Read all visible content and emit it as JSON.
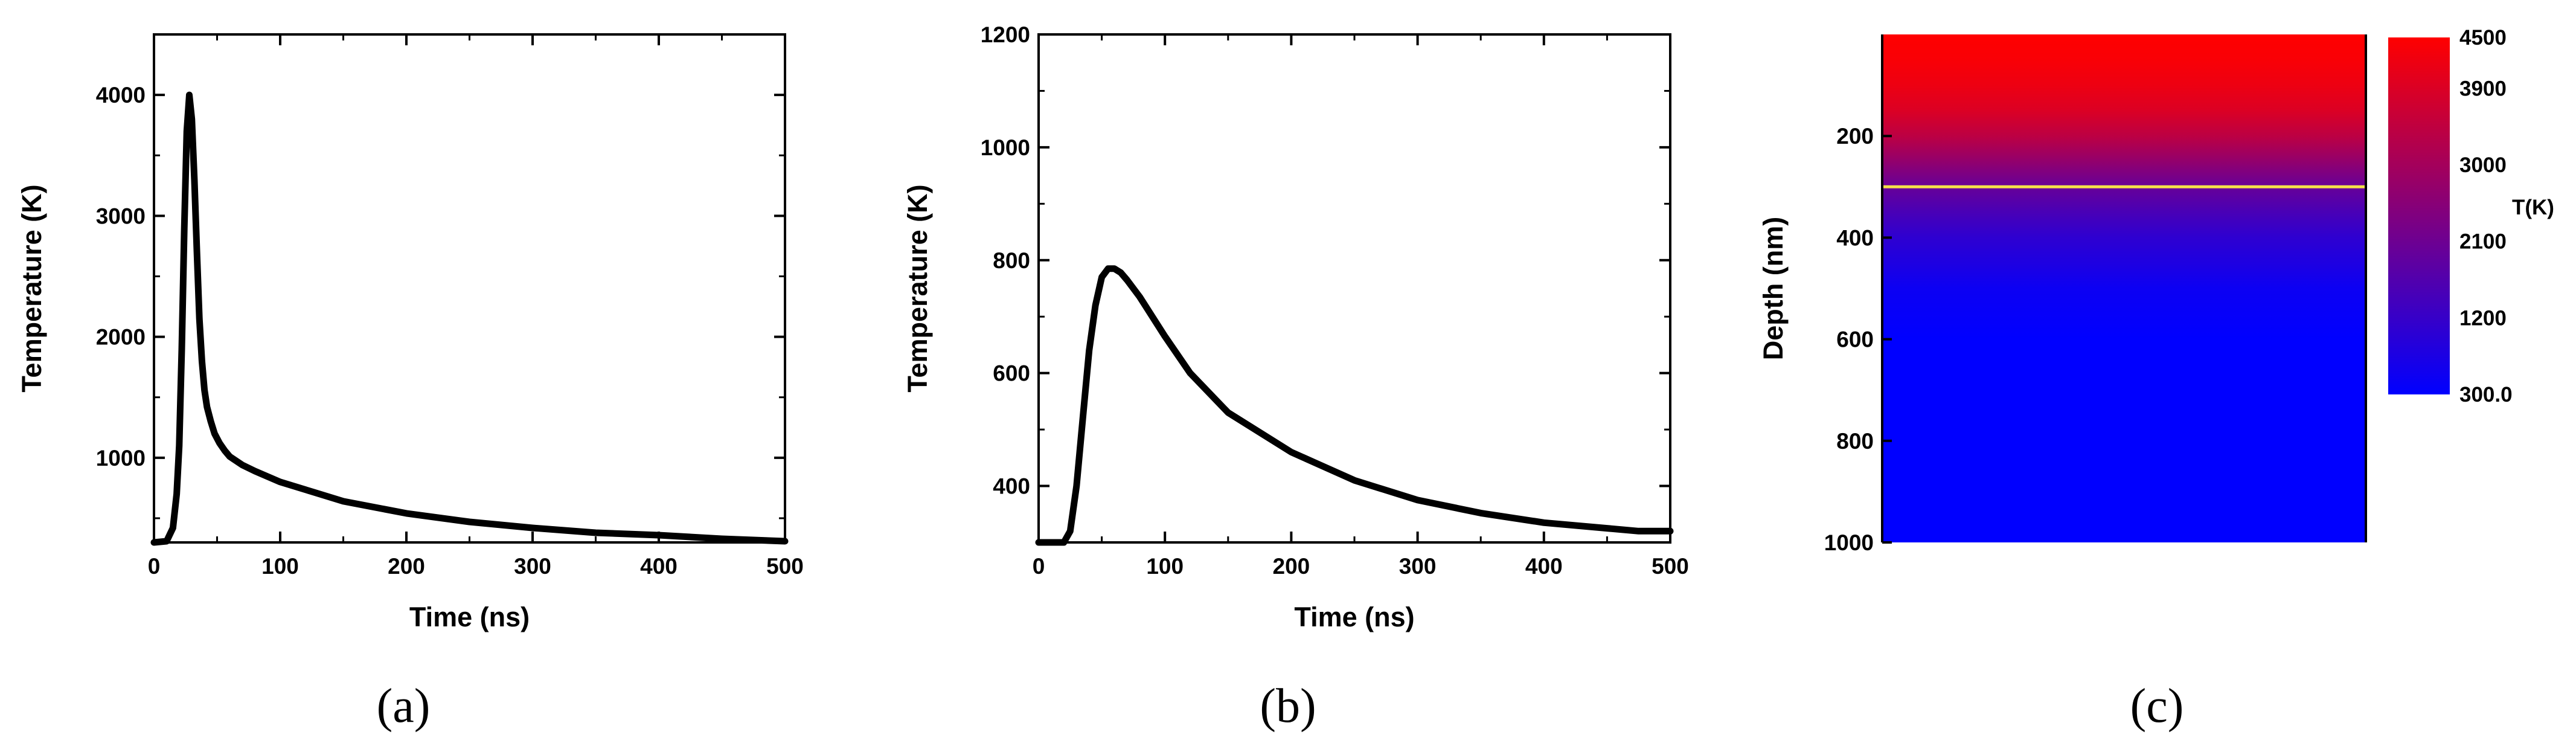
{
  "chart_data": [
    {
      "id": "a",
      "type": "line",
      "panel_label": "(a)",
      "xlabel": "Time (ns)",
      "ylabel": "Temperature (K)",
      "xlim": [
        0,
        500
      ],
      "ylim": [
        300,
        4500
      ],
      "xticks": [
        0,
        100,
        200,
        300,
        400,
        500
      ],
      "yticks": [
        1000,
        2000,
        3000,
        4000
      ],
      "line_color": "#000000",
      "series": [
        {
          "name": "Temperature",
          "x": [
            0,
            10,
            15,
            18,
            20,
            22,
            24,
            26,
            28,
            30,
            32,
            34,
            36,
            38,
            40,
            42,
            45,
            48,
            52,
            56,
            60,
            70,
            80,
            100,
            125,
            150,
            200,
            250,
            300,
            350,
            400,
            450,
            500
          ],
          "y": [
            300,
            310,
            420,
            700,
            1100,
            1900,
            2900,
            3700,
            4000,
            3800,
            3300,
            2700,
            2150,
            1800,
            1560,
            1420,
            1300,
            1200,
            1120,
            1060,
            1010,
            940,
            890,
            800,
            720,
            640,
            540,
            470,
            420,
            380,
            360,
            330,
            310
          ]
        }
      ]
    },
    {
      "id": "b",
      "type": "line",
      "panel_label": "(b)",
      "xlabel": "Time (ns)",
      "ylabel": "Temperature (K)",
      "xlim": [
        0,
        500
      ],
      "ylim": [
        300,
        1200
      ],
      "xticks": [
        0,
        100,
        200,
        300,
        400,
        500
      ],
      "yticks": [
        400,
        600,
        800,
        1000,
        1200
      ],
      "line_color": "#000000",
      "series": [
        {
          "name": "Temperature",
          "x": [
            0,
            20,
            25,
            30,
            35,
            40,
            45,
            50,
            55,
            60,
            65,
            70,
            80,
            90,
            100,
            120,
            150,
            200,
            250,
            300,
            350,
            400,
            450,
            475,
            500
          ],
          "y": [
            300,
            300,
            320,
            400,
            520,
            640,
            720,
            770,
            785,
            785,
            778,
            765,
            735,
            700,
            665,
            600,
            530,
            460,
            410,
            375,
            352,
            335,
            325,
            320,
            320
          ]
        }
      ]
    },
    {
      "id": "c",
      "type": "heatmap",
      "panel_label": "(c)",
      "ylabel": "Depth (nm)",
      "ylim": [
        0,
        1000
      ],
      "yticks": [
        200,
        400,
        600,
        800,
        1000
      ],
      "colorbar": {
        "label": "T(K)",
        "ticks": [
          "4500",
          "3900",
          "3000",
          "2100",
          "1200",
          "300.0"
        ],
        "tick_values": [
          4500,
          3900,
          3000,
          2100,
          1200,
          300
        ],
        "range": [
          300,
          4500
        ],
        "colors": [
          "#ff0000",
          "#0000ff"
        ]
      },
      "depth_profile": {
        "depth": [
          0,
          50,
          100,
          150,
          200,
          250,
          300,
          350,
          400,
          450,
          500,
          600,
          1000
        ],
        "temperature": [
          4500,
          4400,
          4200,
          3900,
          3400,
          2700,
          2000,
          1500,
          1050,
          800,
          500,
          300,
          300
        ]
      },
      "marker_line": {
        "depth": 300,
        "color": "#f5e04a"
      }
    }
  ]
}
